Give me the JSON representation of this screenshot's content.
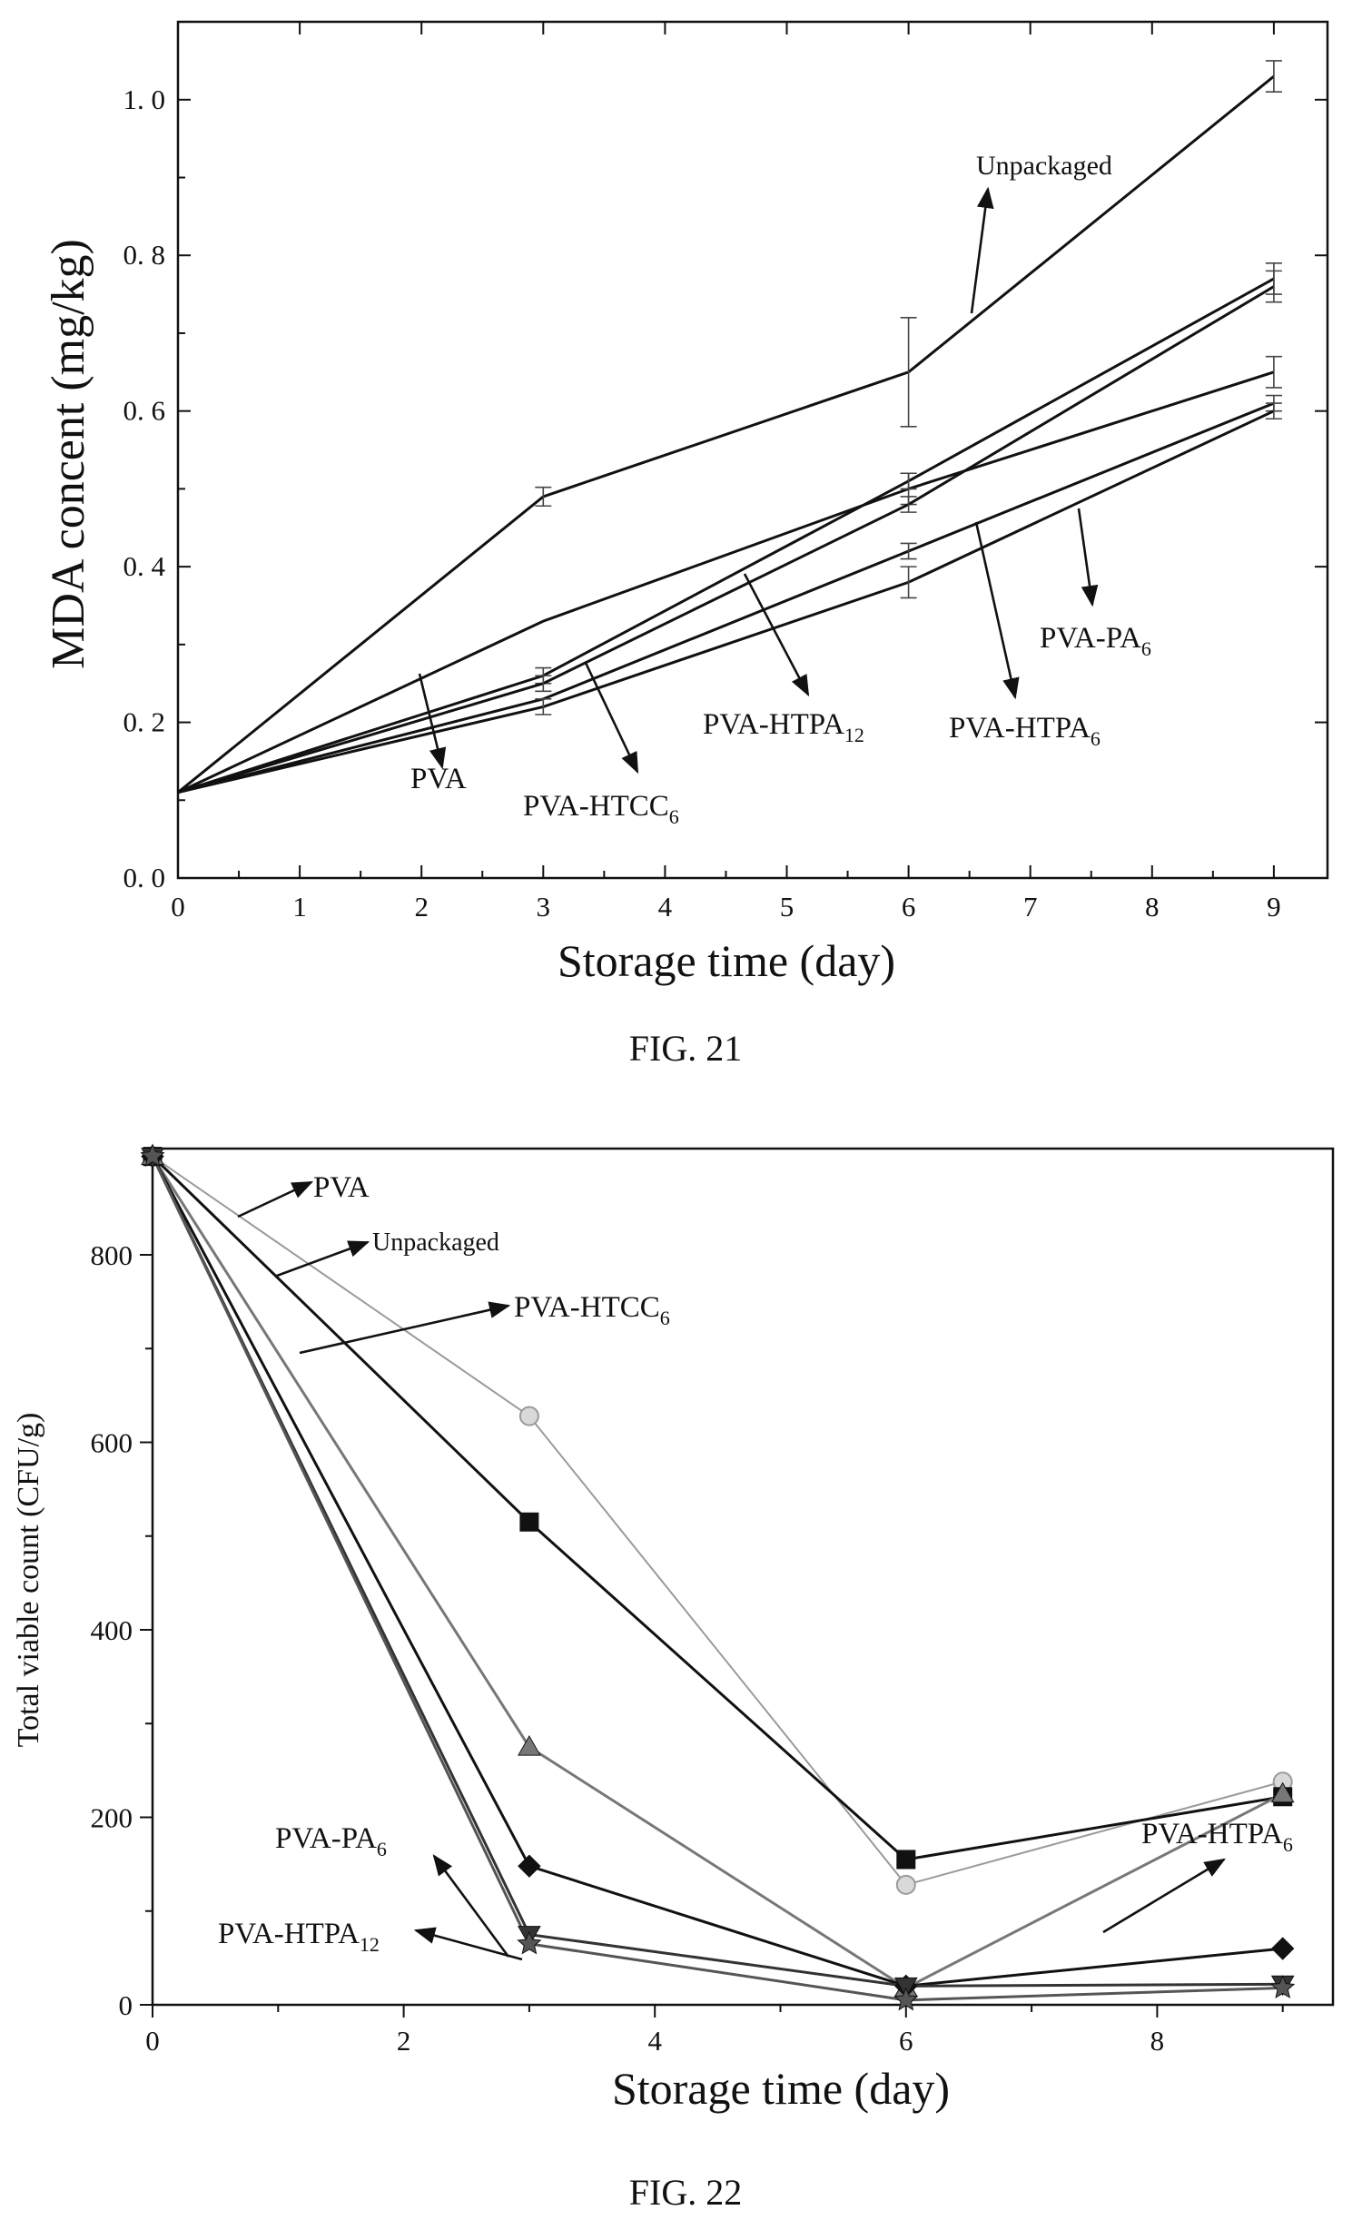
{
  "chart_data": [
    {
      "type": "line",
      "caption": "FIG. 21",
      "xlabel": "Storage time (day)",
      "ylabel": "MDA concent (mg/kg)",
      "xlim": [
        0,
        9.5
      ],
      "ylim": [
        0,
        1.1
      ],
      "xticks": [
        "0",
        "1",
        "2",
        "3",
        "4",
        "5",
        "6",
        "7",
        "8",
        "9"
      ],
      "yticks": [
        "0. 0",
        "0. 2",
        "0. 4",
        "0. 6",
        "0. 8",
        "1. 0"
      ],
      "grid": false,
      "x": [
        0,
        3,
        6,
        9
      ],
      "series": [
        {
          "name": "Unpackaged",
          "values": [
            0.11,
            0.49,
            0.65,
            1.03
          ],
          "err": [
            0,
            0.012,
            0.07,
            0.02
          ]
        },
        {
          "name": "PVA",
          "values": [
            0.11,
            0.33,
            0.5,
            0.65
          ],
          "err": [
            0,
            0,
            0.02,
            0.02
          ]
        },
        {
          "name": "PVA-HTPA12",
          "values": [
            0.11,
            0.26,
            0.51,
            0.77
          ],
          "err": [
            0,
            0.01,
            0.01,
            0.02
          ]
        },
        {
          "name": "PVA-HTCC6",
          "values": [
            0.11,
            0.25,
            0.48,
            0.76
          ],
          "err": [
            0,
            0.01,
            0.01,
            0.02
          ]
        },
        {
          "name": "PVA-PA6",
          "values": [
            0.11,
            0.23,
            0.42,
            0.61
          ],
          "err": [
            0,
            0,
            0.01,
            0.01
          ]
        },
        {
          "name": "PVA-HTPA6",
          "values": [
            0.11,
            0.22,
            0.38,
            0.6
          ],
          "err": [
            0,
            0.01,
            0.02,
            0.01
          ]
        }
      ],
      "annotations": [
        {
          "text": "Unpackaged",
          "target": "Unpackaged"
        },
        {
          "text": "PVA",
          "target": "PVA"
        },
        {
          "text": "PVA-HTCC",
          "sub": "6",
          "target": "PVA-HTCC6"
        },
        {
          "text": "PVA-HTPA",
          "sub": "12",
          "target": "PVA-HTPA12"
        },
        {
          "text": "PVA-HTPA",
          "sub": "6",
          "target": "PVA-HTPA6"
        },
        {
          "text": "PVA-PA",
          "sub": "6",
          "target": "PVA-PA6"
        }
      ]
    },
    {
      "type": "line",
      "caption": "FIG. 22",
      "xlabel": "Storage time (day)",
      "ylabel": "Total viable count (CFU/g)",
      "xlim": [
        0,
        9.5
      ],
      "ylim": [
        0,
        950
      ],
      "xticks": [
        "0",
        "2",
        "4",
        "6",
        "8"
      ],
      "yticks": [
        "0",
        "200",
        "400",
        "600",
        "800"
      ],
      "grid": false,
      "x": [
        0,
        3,
        6,
        9
      ],
      "series": [
        {
          "name": "PVA",
          "marker": "circle",
          "color": "#9a9a9a",
          "values": [
            905,
            628,
            128,
            238
          ]
        },
        {
          "name": "Unpackaged",
          "marker": "square",
          "color": "#111111",
          "values": [
            905,
            515,
            155,
            222
          ]
        },
        {
          "name": "PVA-HTCC6",
          "marker": "triangle",
          "color": "#777777",
          "values": [
            905,
            275,
            18,
            225
          ]
        },
        {
          "name": "PVA-PA6",
          "marker": "diamond",
          "color": "#111111",
          "values": [
            905,
            148,
            20,
            60
          ]
        },
        {
          "name": "PVA-HTPA12",
          "marker": "triangle-down",
          "color": "#333333",
          "values": [
            905,
            75,
            20,
            22
          ]
        },
        {
          "name": "PVA-HTPA6",
          "marker": "star",
          "color": "#555555",
          "values": [
            905,
            65,
            5,
            18
          ]
        }
      ],
      "annotations": [
        {
          "text": "PVA",
          "target": "PVA"
        },
        {
          "text": "Unpackaged",
          "target": "Unpackaged"
        },
        {
          "text": "PVA-HTCC",
          "sub": "6",
          "target": "PVA-HTCC6"
        },
        {
          "text": "PVA-PA",
          "sub": "6",
          "target": "PVA-PA6"
        },
        {
          "text": "PVA-HTPA",
          "sub": "12",
          "target": "PVA-HTPA12"
        },
        {
          "text": "PVA-HTPA",
          "sub": "6",
          "target": "PVA-HTPA6"
        }
      ]
    }
  ]
}
